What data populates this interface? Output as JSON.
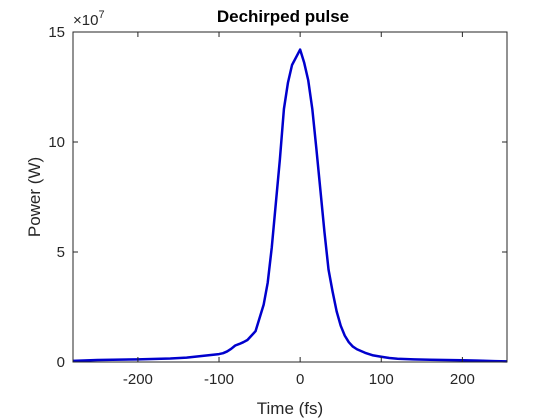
{
  "chart_data": {
    "type": "line",
    "title": "Dechirped pulse",
    "xlabel": "Time (fs)",
    "ylabel": "Power (W)",
    "xlim": [
      -280,
      255
    ],
    "ylim": [
      0,
      150000000
    ],
    "xticks": [
      -200,
      -100,
      0,
      100,
      200
    ],
    "xtick_labels": [
      "-200",
      "-100",
      "0",
      "100",
      "200"
    ],
    "yticks": [
      0,
      50000000,
      100000000,
      150000000
    ],
    "ytick_labels": [
      "0",
      "5",
      "10",
      "15"
    ],
    "y_exponent_base": "×10",
    "y_exponent_power": "7",
    "grid": false,
    "series": [
      {
        "color": "#0000CD",
        "x": [
          -280,
          -250,
          -200,
          -160,
          -140,
          -120,
          -110,
          -100,
          -95,
          -90,
          -85,
          -80,
          -75,
          -70,
          -65,
          -60,
          -55,
          -50,
          -45,
          -40,
          -35,
          -30,
          -25,
          -20,
          -15,
          -10,
          -5,
          0,
          5,
          10,
          15,
          20,
          25,
          30,
          35,
          40,
          45,
          50,
          55,
          60,
          65,
          70,
          75,
          80,
          90,
          100,
          110,
          120,
          140,
          160,
          180,
          200,
          220,
          240,
          255
        ],
        "y": [
          500000,
          900000,
          1200000,
          1600000,
          2000000,
          2800000,
          3200000,
          3600000,
          4000000,
          4800000,
          6000000,
          7500000,
          8200000,
          9000000,
          10000000,
          12000000,
          14000000,
          20000000,
          26000000,
          36000000,
          52000000,
          72000000,
          92000000,
          115000000,
          127000000,
          135000000,
          138500000,
          142000000,
          136000000,
          128000000,
          115000000,
          97000000,
          78000000,
          59000000,
          42000000,
          32000000,
          23000000,
          16500000,
          12000000,
          9000000,
          7000000,
          5800000,
          5000000,
          4200000,
          3000000,
          2400000,
          1800000,
          1500000,
          1200000,
          1000000,
          900000,
          800000,
          600000,
          400000,
          300000
        ]
      }
    ]
  }
}
